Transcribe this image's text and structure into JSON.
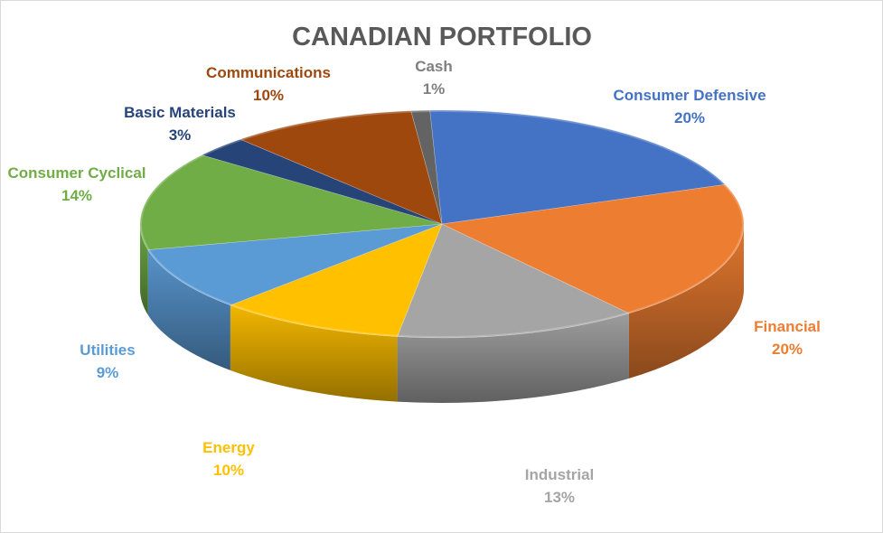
{
  "chart_data": {
    "type": "pie",
    "title": "CANADIAN PORTFOLIO",
    "three_d": true,
    "slices": [
      {
        "label": "Consumer Defensive",
        "value": 20,
        "display": "20%",
        "color": "#4472C4",
        "label_color": "#4472C4"
      },
      {
        "label": "Financial",
        "value": 20,
        "display": "20%",
        "color": "#ED7D31",
        "label_color": "#ED7D31"
      },
      {
        "label": "Industrial",
        "value": 13,
        "display": "13%",
        "color": "#A5A5A5",
        "label_color": "#A5A5A5"
      },
      {
        "label": "Energy",
        "value": 10,
        "display": "10%",
        "color": "#FFC000",
        "label_color": "#FFC000"
      },
      {
        "label": "Utilities",
        "value": 9,
        "display": "9%",
        "color": "#5B9BD5",
        "label_color": "#5B9BD5"
      },
      {
        "label": "Consumer Cyclical",
        "value": 14,
        "display": "14%",
        "color": "#70AD47",
        "label_color": "#70AD47"
      },
      {
        "label": "Basic Materials",
        "value": 3,
        "display": "3%",
        "color": "#264478",
        "label_color": "#264478"
      },
      {
        "label": "Communications",
        "value": 10,
        "display": "10%",
        "color": "#9E480E",
        "label_color": "#9E480E"
      },
      {
        "label": "Cash",
        "value": 1,
        "display": "1%",
        "color": "#636363",
        "label_color": "#7F7F7F"
      }
    ]
  }
}
